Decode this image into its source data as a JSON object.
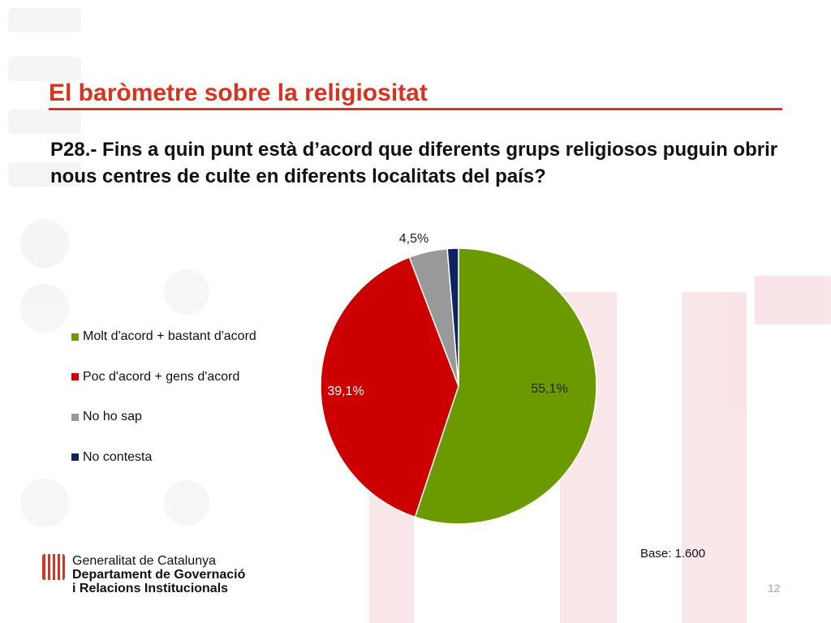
{
  "slide": {
    "title": "El baròmetre sobre la religiositat",
    "question": "P28.- Fins a quin punt està d’acord que diferents grups religiosos puguin obrir nous centres de culte en diferents localitats del país?",
    "base": "Base: 1.600",
    "page_number": "12"
  },
  "logo": {
    "line1": "Generalitat de Catalunya",
    "line2": "Departament de Governació",
    "line3": "i Relacions Institucionals"
  },
  "legend": [
    {
      "label": "Molt d'acord + bastant d'acord",
      "color": "#6a9a00"
    },
    {
      "label": "Poc d'acord + gens d'acord",
      "color": "#cc0000"
    },
    {
      "label": "No ho sap",
      "color": "#999999"
    },
    {
      "label": "No contesta",
      "color": "#0d2463"
    }
  ],
  "chart_data": {
    "type": "pie",
    "title": "",
    "series": [
      {
        "name": "Molt d'acord + bastant d'acord",
        "value": 55.1,
        "label": "55,1%",
        "color": "#6a9a00"
      },
      {
        "name": "Poc d'acord + gens d'acord",
        "value": 39.1,
        "label": "39,1%",
        "color": "#cc0000"
      },
      {
        "name": "No ho sap",
        "value": 4.5,
        "label": "4,5%",
        "color": "#999999"
      },
      {
        "name": "No contesta",
        "value": 1.3,
        "label": "",
        "color": "#0d2463"
      }
    ],
    "legend_position": "left"
  }
}
